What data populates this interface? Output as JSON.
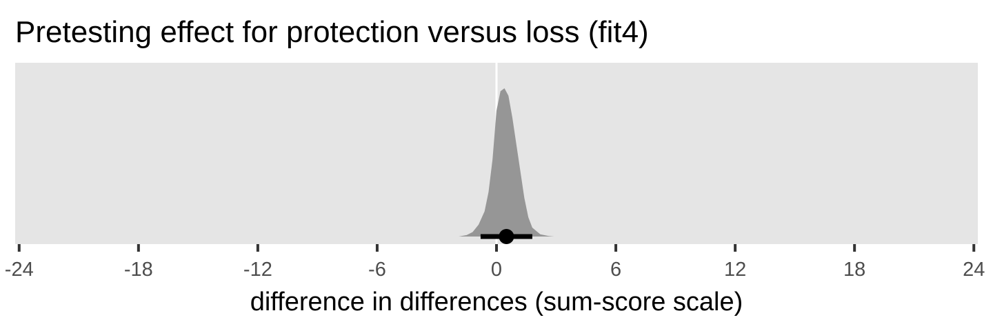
{
  "chart_data": {
    "type": "area",
    "title": "Pretesting effect for protection versus loss (fit4)",
    "xlabel": "difference in differences (sum-score scale)",
    "ylabel": "",
    "xlim": [
      -24.2,
      24.2
    ],
    "x_ticks": [
      -24,
      -18,
      -12,
      -6,
      0,
      6,
      12,
      18,
      24
    ],
    "x_tick_labels": [
      "-24",
      "-18",
      "-12",
      "-6",
      "0",
      "6",
      "12",
      "18",
      "24"
    ],
    "reference_line_x": 0,
    "density": {
      "x": [
        -1.9,
        -1.5,
        -1.2,
        -0.9,
        -0.6,
        -0.4,
        -0.2,
        0.0,
        0.2,
        0.4,
        0.6,
        0.8,
        1.0,
        1.2,
        1.4,
        1.6,
        1.8,
        2.2,
        2.6,
        2.9
      ],
      "y": [
        0.0,
        0.01,
        0.03,
        0.08,
        0.17,
        0.3,
        0.52,
        0.85,
        0.98,
        1.0,
        0.95,
        0.8,
        0.62,
        0.44,
        0.26,
        0.13,
        0.06,
        0.015,
        0.004,
        0.0
      ]
    },
    "point_estimate": 0.5,
    "interval": [
      -0.8,
      1.8
    ],
    "grid": false,
    "legend": "none",
    "colors": {
      "panel_background": "#e5e5e5",
      "density_fill": "#969696",
      "reference_line": "#ffffff",
      "interval": "#000000",
      "point": "#000000",
      "tick_label": "#4d4d4d"
    }
  }
}
